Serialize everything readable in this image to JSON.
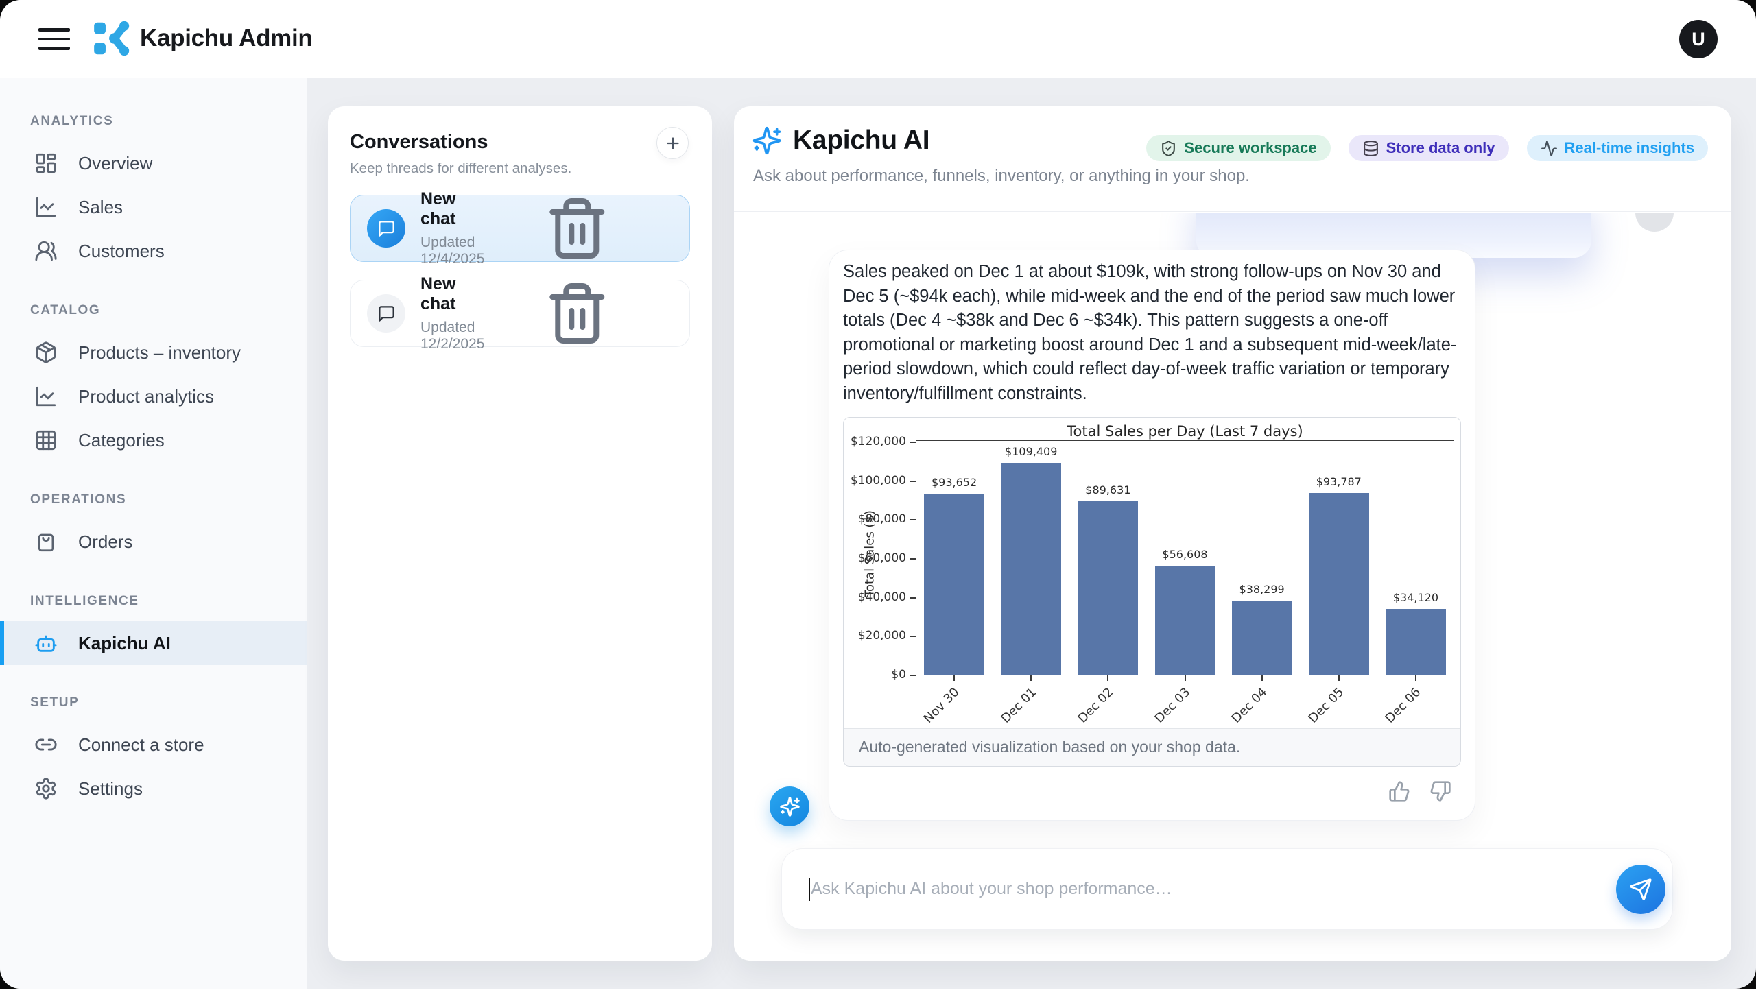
{
  "header": {
    "title": "Kapichu Admin",
    "avatar_initial": "U"
  },
  "sidebar": {
    "sections": [
      {
        "label": "ANALYTICS",
        "items": [
          {
            "label": "Overview",
            "icon": "dashboard-icon"
          },
          {
            "label": "Sales",
            "icon": "chart-line-icon"
          },
          {
            "label": "Customers",
            "icon": "users-icon"
          }
        ]
      },
      {
        "label": "CATALOG",
        "items": [
          {
            "label": "Products – inventory",
            "icon": "package-icon"
          },
          {
            "label": "Product analytics",
            "icon": "chart-line-icon"
          },
          {
            "label": "Categories",
            "icon": "grid-icon"
          }
        ]
      },
      {
        "label": "OPERATIONS",
        "items": [
          {
            "label": "Orders",
            "icon": "shopping-bag-icon"
          }
        ]
      },
      {
        "label": "INTELLIGENCE",
        "items": [
          {
            "label": "Kapichu AI",
            "icon": "bot-icon",
            "active": true
          }
        ]
      },
      {
        "label": "SETUP",
        "items": [
          {
            "label": "Connect a store",
            "icon": "link-icon"
          },
          {
            "label": "Settings",
            "icon": "gear-icon"
          }
        ]
      }
    ]
  },
  "conversations": {
    "title": "Conversations",
    "subtitle": "Keep threads for different analyses.",
    "items": [
      {
        "title": "New chat",
        "updated": "Updated 12/4/2025",
        "selected": true
      },
      {
        "title": "New chat",
        "updated": "Updated 12/2/2025",
        "selected": false
      }
    ]
  },
  "chat": {
    "title": "Kapichu AI",
    "subtitle": "Ask about performance, funnels, inventory, or anything in your shop.",
    "badges": [
      {
        "label": "Secure workspace",
        "icon": "shield-check-icon",
        "text_color": "#177a58",
        "bg": "#e2f4ea"
      },
      {
        "label": "Store data only",
        "icon": "database-icon",
        "text_color": "#3f2fba",
        "bg": "#eae7fa"
      },
      {
        "label": "Real-time insights",
        "icon": "activity-icon",
        "text_color": "#21a0f1",
        "bg": "#def0fc"
      }
    ],
    "message": "Sales peaked on Dec 1 at about $109k, with strong follow-ups on Nov 30 and Dec 5 (~$94k each), while mid-week and the end of the period saw much lower totals (Dec 4 ~$38k and Dec 6 ~$34k). This pattern suggests a one-off promotional or marketing boost around Dec 1 and a subsequent mid-week/late-period slowdown, which could reflect day-of-week traffic variation or temporary inventory/fulfillment constraints.",
    "chart_caption": "Auto-generated visualization based on your shop data.",
    "input_placeholder": "Ask Kapichu AI about your shop performance…"
  },
  "chart_data": {
    "type": "bar",
    "title": "Total Sales per Day (Last 7 days)",
    "categories": [
      "Nov 30",
      "Dec 01",
      "Dec 02",
      "Dec 03",
      "Dec 04",
      "Dec 05",
      "Dec 06"
    ],
    "values": [
      93652,
      109409,
      89631,
      56608,
      38299,
      93787,
      34120
    ],
    "value_labels": [
      "$93,652",
      "$109,409",
      "$89,631",
      "$56,608",
      "$38,299",
      "$93,787",
      "$34,120"
    ],
    "xlabel": "",
    "ylabel": "Total Sales ($)",
    "ylim": [
      0,
      121000
    ],
    "yticks": [
      0,
      20000,
      40000,
      60000,
      80000,
      100000,
      120000
    ],
    "ytick_labels": [
      "$0",
      "$20,000",
      "$40,000",
      "$60,000",
      "$80,000",
      "$100,000",
      "$120,000"
    ],
    "bar_color": "#5876a8",
    "grid": false,
    "legend_position": "none"
  }
}
